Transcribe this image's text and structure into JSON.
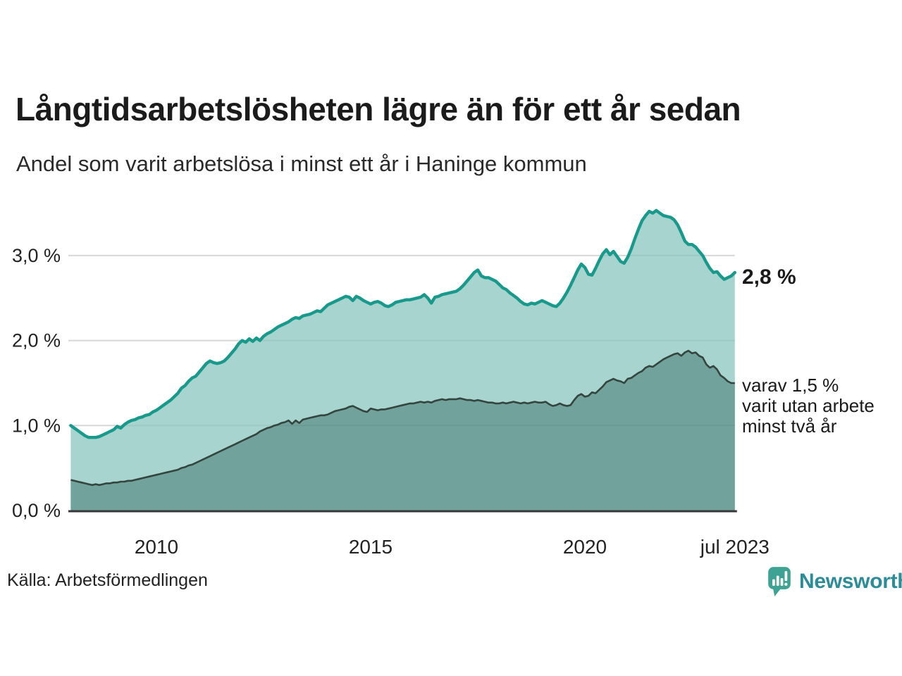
{
  "title": "Långtidsarbetslösheten lägre än för ett år sedan",
  "subtitle": "Andel som varit arbetslösa i minst ett år i Haninge kommun",
  "source": "Källa: Arbetsförmedlingen",
  "logo": {
    "text": "Newsworthy",
    "icon": "newsworthy-pin-icon",
    "pin_color": "#3ea294",
    "text_color": "#2c8c97"
  },
  "annotations": {
    "end_value_label": "2,8 %",
    "inner_label_lines": [
      "varav 1,5 %",
      "varit utan arbete",
      "minst två år"
    ]
  },
  "colors": {
    "series1_line": "#17998b",
    "series1_fill": "#a7d4ce",
    "series2_line": "#34443f",
    "series2_fill": "#72a29c",
    "grid": "#e3e3e3",
    "baseline": "#383838",
    "axis_text": "#222222"
  },
  "chart_data": {
    "type": "area",
    "title": "Långtidsarbetslösheten lägre än för ett år sedan",
    "subtitle": "Andel som varit arbetslösa i minst ett år i Haninge kommun",
    "unit": "%",
    "x_start": 2008.0,
    "x_end": 2023.5,
    "x_step_months": 1,
    "ylim": [
      0,
      3.6
    ],
    "grid": "horizontal",
    "legend_position": "right-annotations",
    "x_ticks": [
      {
        "t": 2010.0,
        "label": "2010"
      },
      {
        "t": 2015.0,
        "label": "2015"
      },
      {
        "t": 2020.0,
        "label": "2020"
      },
      {
        "t": 2023.5,
        "label": "jul 2023"
      }
    ],
    "y_ticks": [
      {
        "v": 0,
        "label": "0,0 %"
      },
      {
        "v": 1,
        "label": "1,0 %"
      },
      {
        "v": 2,
        "label": "2,0 %"
      },
      {
        "v": 3,
        "label": "3,0 %"
      }
    ],
    "series": [
      {
        "name": "Andel arbetslösa minst ett år",
        "end_value_label": "2,8 %",
        "line_color": "#17998b",
        "fill_color": "#a7d4ce",
        "values": [
          1.0,
          0.97,
          0.94,
          0.91,
          0.88,
          0.86,
          0.86,
          0.86,
          0.87,
          0.89,
          0.91,
          0.93,
          0.95,
          0.99,
          0.97,
          1.01,
          1.04,
          1.06,
          1.07,
          1.09,
          1.1,
          1.12,
          1.13,
          1.16,
          1.18,
          1.21,
          1.24,
          1.27,
          1.3,
          1.34,
          1.38,
          1.44,
          1.47,
          1.52,
          1.56,
          1.58,
          1.63,
          1.68,
          1.73,
          1.76,
          1.74,
          1.73,
          1.74,
          1.76,
          1.8,
          1.85,
          1.9,
          1.96,
          2.0,
          1.98,
          2.02,
          1.99,
          2.03,
          2.0,
          2.05,
          2.08,
          2.1,
          2.13,
          2.16,
          2.18,
          2.2,
          2.22,
          2.25,
          2.27,
          2.26,
          2.29,
          2.3,
          2.31,
          2.33,
          2.35,
          2.34,
          2.38,
          2.42,
          2.44,
          2.46,
          2.48,
          2.5,
          2.52,
          2.51,
          2.47,
          2.52,
          2.5,
          2.47,
          2.45,
          2.43,
          2.45,
          2.46,
          2.44,
          2.41,
          2.4,
          2.42,
          2.45,
          2.46,
          2.47,
          2.48,
          2.48,
          2.49,
          2.5,
          2.51,
          2.54,
          2.5,
          2.44,
          2.51,
          2.52,
          2.54,
          2.55,
          2.56,
          2.57,
          2.58,
          2.61,
          2.65,
          2.7,
          2.75,
          2.8,
          2.83,
          2.76,
          2.74,
          2.74,
          2.72,
          2.7,
          2.66,
          2.62,
          2.6,
          2.56,
          2.53,
          2.5,
          2.46,
          2.43,
          2.42,
          2.44,
          2.43,
          2.45,
          2.47,
          2.45,
          2.43,
          2.41,
          2.4,
          2.44,
          2.5,
          2.57,
          2.65,
          2.74,
          2.83,
          2.9,
          2.86,
          2.78,
          2.77,
          2.85,
          2.94,
          3.02,
          3.07,
          3.01,
          3.05,
          2.99,
          2.93,
          2.91,
          2.98,
          3.08,
          3.2,
          3.31,
          3.41,
          3.47,
          3.52,
          3.5,
          3.53,
          3.5,
          3.47,
          3.46,
          3.45,
          3.42,
          3.36,
          3.27,
          3.17,
          3.13,
          3.13,
          3.1,
          3.05,
          3.0,
          2.92,
          2.85,
          2.8,
          2.81,
          2.76,
          2.72,
          2.74,
          2.76,
          2.8
        ]
      },
      {
        "name": "varav utan arbete minst två år",
        "end_value_label": "1,5 %",
        "line_color": "#34443f",
        "fill_color": "#72a29c",
        "values": [
          0.36,
          0.35,
          0.34,
          0.33,
          0.32,
          0.31,
          0.3,
          0.31,
          0.3,
          0.31,
          0.32,
          0.32,
          0.33,
          0.33,
          0.34,
          0.34,
          0.35,
          0.35,
          0.36,
          0.37,
          0.38,
          0.39,
          0.4,
          0.41,
          0.42,
          0.43,
          0.44,
          0.45,
          0.46,
          0.47,
          0.48,
          0.5,
          0.51,
          0.53,
          0.54,
          0.56,
          0.58,
          0.6,
          0.62,
          0.64,
          0.66,
          0.68,
          0.7,
          0.72,
          0.74,
          0.76,
          0.78,
          0.8,
          0.82,
          0.84,
          0.86,
          0.88,
          0.9,
          0.93,
          0.95,
          0.97,
          0.98,
          1.0,
          1.01,
          1.03,
          1.04,
          1.06,
          1.02,
          1.06,
          1.03,
          1.07,
          1.08,
          1.09,
          1.1,
          1.11,
          1.12,
          1.12,
          1.13,
          1.15,
          1.17,
          1.18,
          1.19,
          1.2,
          1.22,
          1.23,
          1.21,
          1.19,
          1.17,
          1.16,
          1.2,
          1.19,
          1.18,
          1.19,
          1.19,
          1.2,
          1.21,
          1.22,
          1.23,
          1.24,
          1.25,
          1.26,
          1.26,
          1.27,
          1.28,
          1.27,
          1.28,
          1.27,
          1.29,
          1.3,
          1.31,
          1.3,
          1.31,
          1.31,
          1.31,
          1.32,
          1.31,
          1.3,
          1.3,
          1.29,
          1.3,
          1.29,
          1.28,
          1.27,
          1.27,
          1.26,
          1.26,
          1.27,
          1.26,
          1.27,
          1.28,
          1.27,
          1.26,
          1.27,
          1.26,
          1.27,
          1.28,
          1.27,
          1.27,
          1.28,
          1.25,
          1.23,
          1.24,
          1.26,
          1.24,
          1.23,
          1.24,
          1.3,
          1.35,
          1.37,
          1.34,
          1.35,
          1.39,
          1.38,
          1.42,
          1.46,
          1.51,
          1.53,
          1.55,
          1.53,
          1.52,
          1.5,
          1.55,
          1.56,
          1.59,
          1.62,
          1.64,
          1.68,
          1.7,
          1.69,
          1.72,
          1.75,
          1.78,
          1.8,
          1.82,
          1.84,
          1.85,
          1.82,
          1.86,
          1.88,
          1.85,
          1.86,
          1.82,
          1.8,
          1.72,
          1.68,
          1.7,
          1.66,
          1.59,
          1.56,
          1.52,
          1.5,
          1.5
        ]
      }
    ]
  }
}
